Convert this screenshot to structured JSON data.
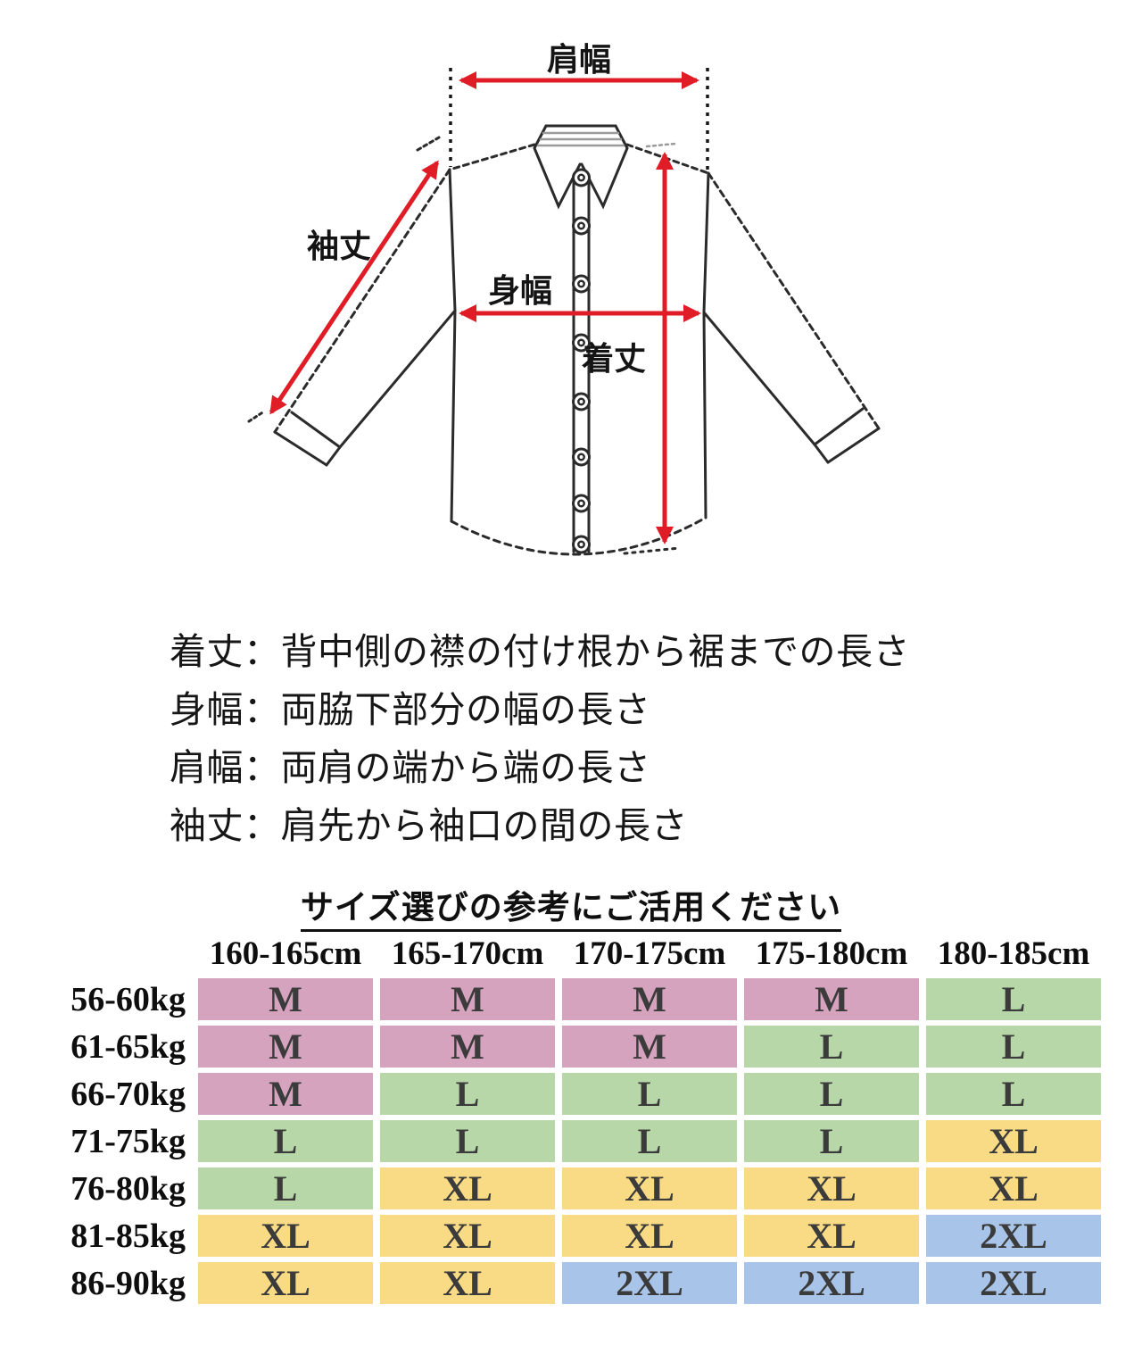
{
  "diagram": {
    "labels": {
      "shoulder_width": "肩幅",
      "sleeve_length": "袖丈",
      "body_width": "身幅",
      "body_length": "着丈"
    },
    "arrow_color": "#e01d26",
    "outline_color": "#2b2b2b"
  },
  "definitions": [
    "着丈：背中側の襟の付け根から裾までの長さ",
    "身幅：両脇下部分の幅の長さ",
    "肩幅：両肩の端から端の長さ",
    "袖丈：肩先から袖口の間の長さ"
  ],
  "size_chart": {
    "title": "サイズ選びの参考にご活用ください",
    "height_columns": [
      "160-165cm",
      "165-170cm",
      "170-175cm",
      "175-180cm",
      "180-185cm"
    ],
    "weight_rows": [
      "56-60kg",
      "61-65kg",
      "66-70kg",
      "71-75kg",
      "76-80kg",
      "81-85kg",
      "86-90kg"
    ],
    "matrix": [
      [
        "M",
        "M",
        "M",
        "M",
        "L"
      ],
      [
        "M",
        "M",
        "M",
        "L",
        "L"
      ],
      [
        "M",
        "L",
        "L",
        "L",
        "L"
      ],
      [
        "L",
        "L",
        "L",
        "L",
        "XL"
      ],
      [
        "L",
        "XL",
        "XL",
        "XL",
        "XL"
      ],
      [
        "XL",
        "XL",
        "XL",
        "XL",
        "2XL"
      ],
      [
        "XL",
        "XL",
        "2XL",
        "2XL",
        "2XL"
      ]
    ],
    "size_colors": {
      "M": "#d5a3bd",
      "L": "#b7d7a8",
      "XL": "#f9db85",
      "2XL": "#a8c4e8"
    },
    "cell_text_color": "#3b3b3b"
  }
}
